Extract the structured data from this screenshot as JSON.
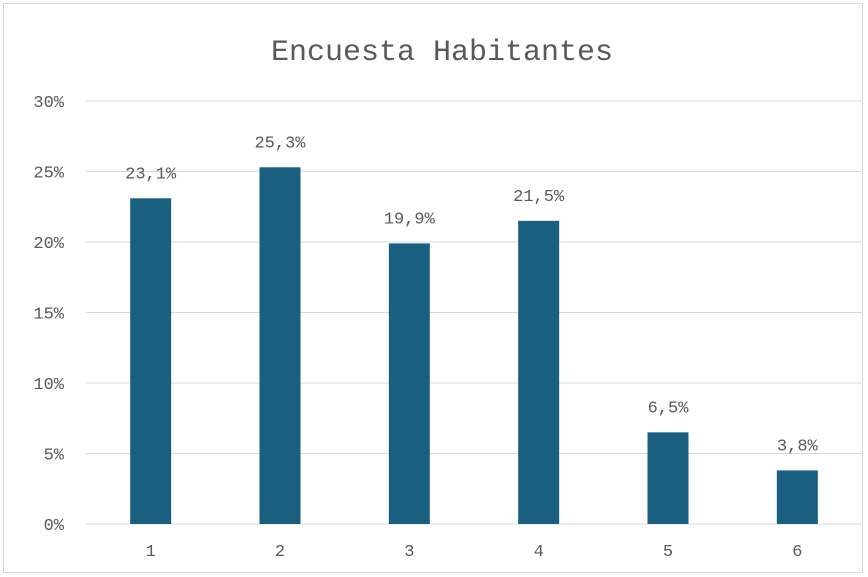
{
  "chart_data": {
    "type": "bar",
    "title": "Encuesta Habitantes",
    "categories": [
      "1",
      "2",
      "3",
      "4",
      "5",
      "6"
    ],
    "values": [
      23.1,
      25.3,
      19.9,
      21.5,
      6.5,
      3.8
    ],
    "data_labels": [
      "23,1%",
      "25,3%",
      "19,9%",
      "21,5%",
      "6,5%",
      "3,8%"
    ],
    "y_ticks": [
      0,
      5,
      10,
      15,
      20,
      25,
      30
    ],
    "y_tick_labels": [
      "0%",
      "5%",
      "10%",
      "15%",
      "20%",
      "25%",
      "30%"
    ],
    "ylim": [
      0,
      30
    ],
    "grid": true,
    "legend": "none",
    "colors": {
      "bar": "#1a5f80",
      "grid": "#d9d9d9",
      "text": "#595959"
    }
  }
}
